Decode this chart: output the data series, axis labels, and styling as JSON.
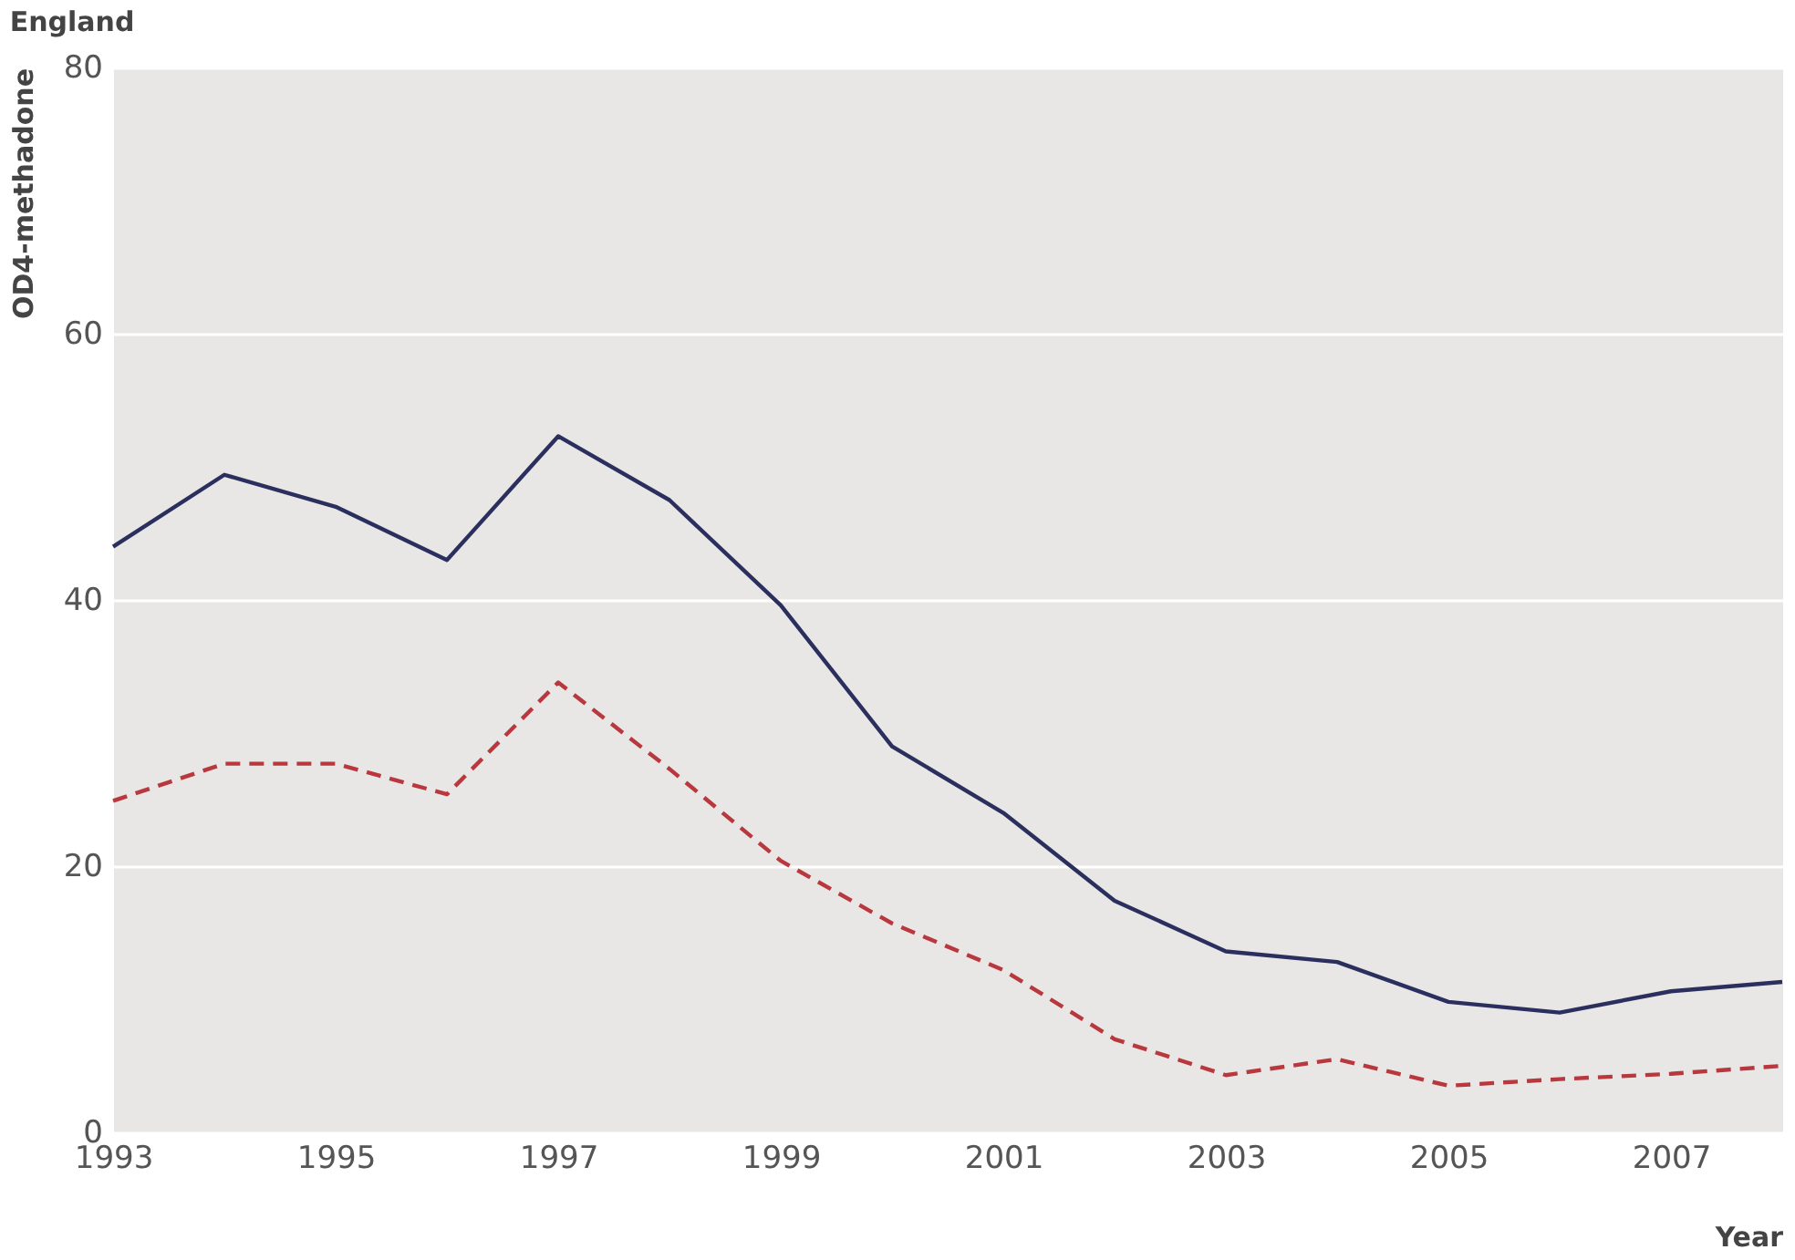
{
  "chart_data": {
    "type": "line",
    "title": "England",
    "ylabel": "OD4-methadone",
    "xlabel": "Year",
    "x": [
      1993,
      1994,
      1995,
      1996,
      1997,
      1998,
      1999,
      2000,
      2001,
      2002,
      2003,
      2004,
      2005,
      2006,
      2007,
      2008
    ],
    "series": [
      {
        "color": "#2b2f5e",
        "line_style": "solid",
        "values": [
          44,
          49.4,
          47,
          43,
          52.3,
          47.5,
          39.6,
          29,
          24,
          17.4,
          13.6,
          12.8,
          9.8,
          9,
          10.6,
          11.3
        ]
      },
      {
        "color": "#b8383e",
        "line_style": "dashed",
        "values": [
          24.9,
          27.7,
          27.7,
          25.4,
          33.8,
          27.3,
          20.4,
          15.7,
          12.2,
          7,
          4.3,
          5.5,
          3.5,
          4,
          4.4,
          5
        ]
      }
    ],
    "xlim": [
      1993,
      2008
    ],
    "xticks": [
      1993,
      1995,
      1997,
      1999,
      2001,
      2003,
      2005,
      2007
    ],
    "ylim": [
      0,
      80
    ],
    "yticks": [
      0,
      20,
      40,
      60,
      80
    ],
    "grid": "y",
    "legend": false,
    "marker": "none"
  }
}
